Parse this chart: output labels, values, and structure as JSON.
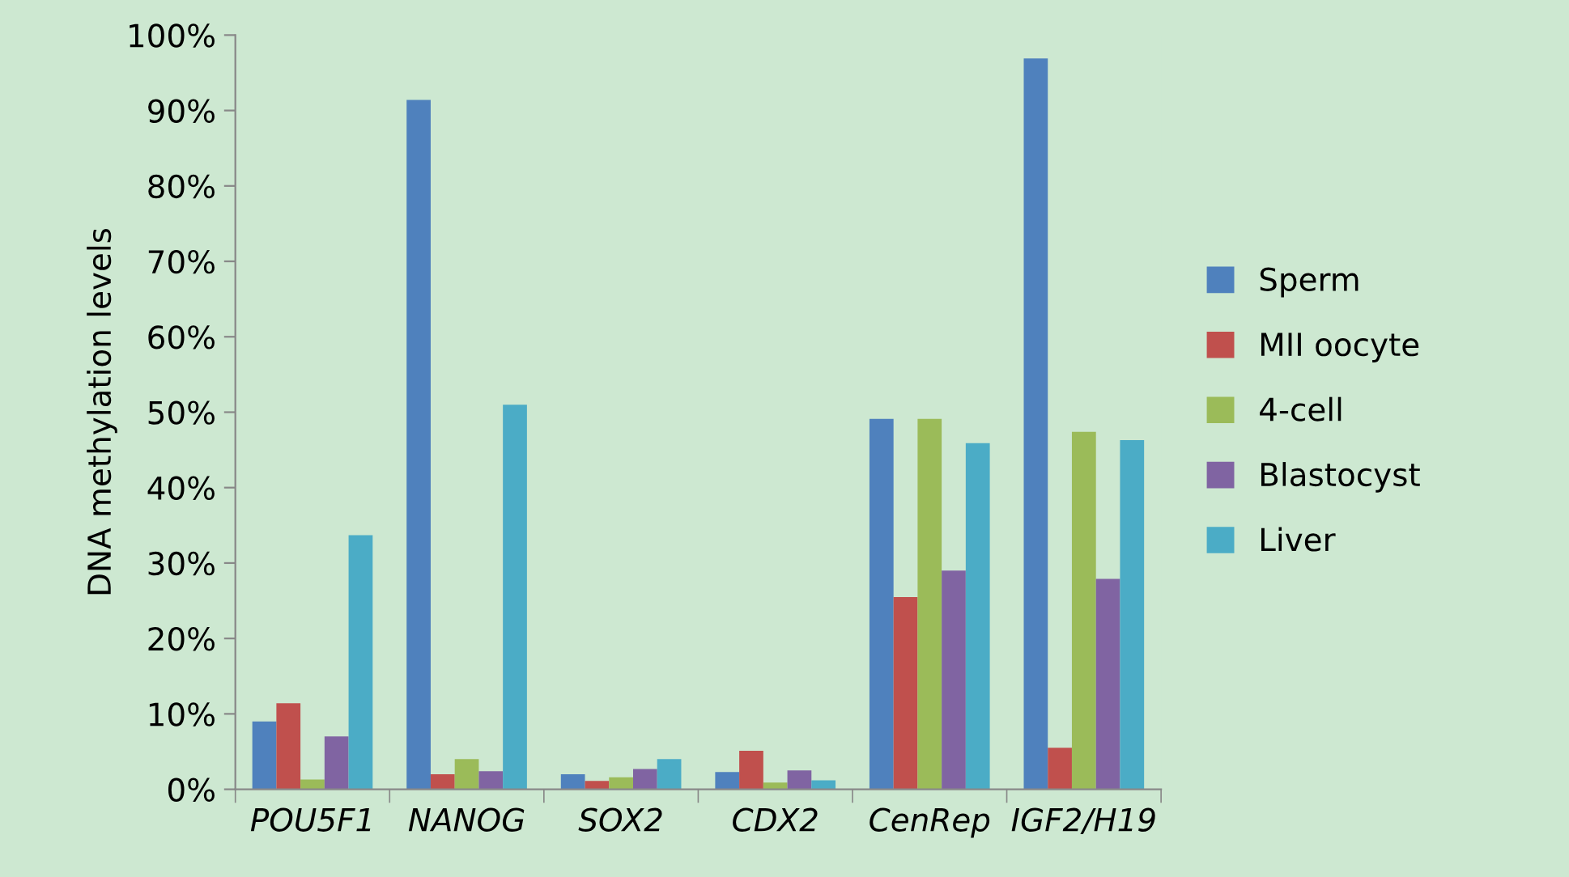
{
  "chart_data": {
    "type": "bar",
    "ylabel": "DNA methylation levels",
    "categories": [
      "POU5F1",
      "NANOG",
      "SOX2",
      "CDX2",
      "CenRep",
      "IGF2/H19"
    ],
    "series": [
      {
        "name": "Sperm",
        "color": "#4f81bd",
        "values": [
          9.0,
          91.4,
          2.0,
          2.3,
          49.1,
          96.9
        ]
      },
      {
        "name": "MII oocyte",
        "color": "#c0504d",
        "values": [
          11.4,
          2.0,
          1.1,
          5.1,
          25.5,
          5.5
        ]
      },
      {
        "name": "4-cell",
        "color": "#9bbb59",
        "values": [
          1.3,
          4.0,
          1.6,
          0.9,
          49.1,
          47.4
        ]
      },
      {
        "name": "Blastocyst",
        "color": "#8064a2",
        "values": [
          7.0,
          2.4,
          2.7,
          2.5,
          29.0,
          27.9
        ]
      },
      {
        "name": "Liver",
        "color": "#4bacc6",
        "values": [
          33.7,
          51.0,
          4.0,
          1.2,
          45.9,
          46.3
        ]
      }
    ],
    "ylim": [
      0,
      100
    ],
    "yticks": [
      {
        "value": 0,
        "label": "0%"
      },
      {
        "value": 10,
        "label": "10%"
      },
      {
        "value": 20,
        "label": "20%"
      },
      {
        "value": 30,
        "label": "30%"
      },
      {
        "value": 40,
        "label": "40%"
      },
      {
        "value": 50,
        "label": "50%"
      },
      {
        "value": 60,
        "label": "60%"
      },
      {
        "value": 70,
        "label": "70%"
      },
      {
        "value": 80,
        "label": "80%"
      },
      {
        "value": 90,
        "label": "90%"
      },
      {
        "value": 100,
        "label": "100%"
      }
    ],
    "grid": false,
    "legend": "right"
  }
}
